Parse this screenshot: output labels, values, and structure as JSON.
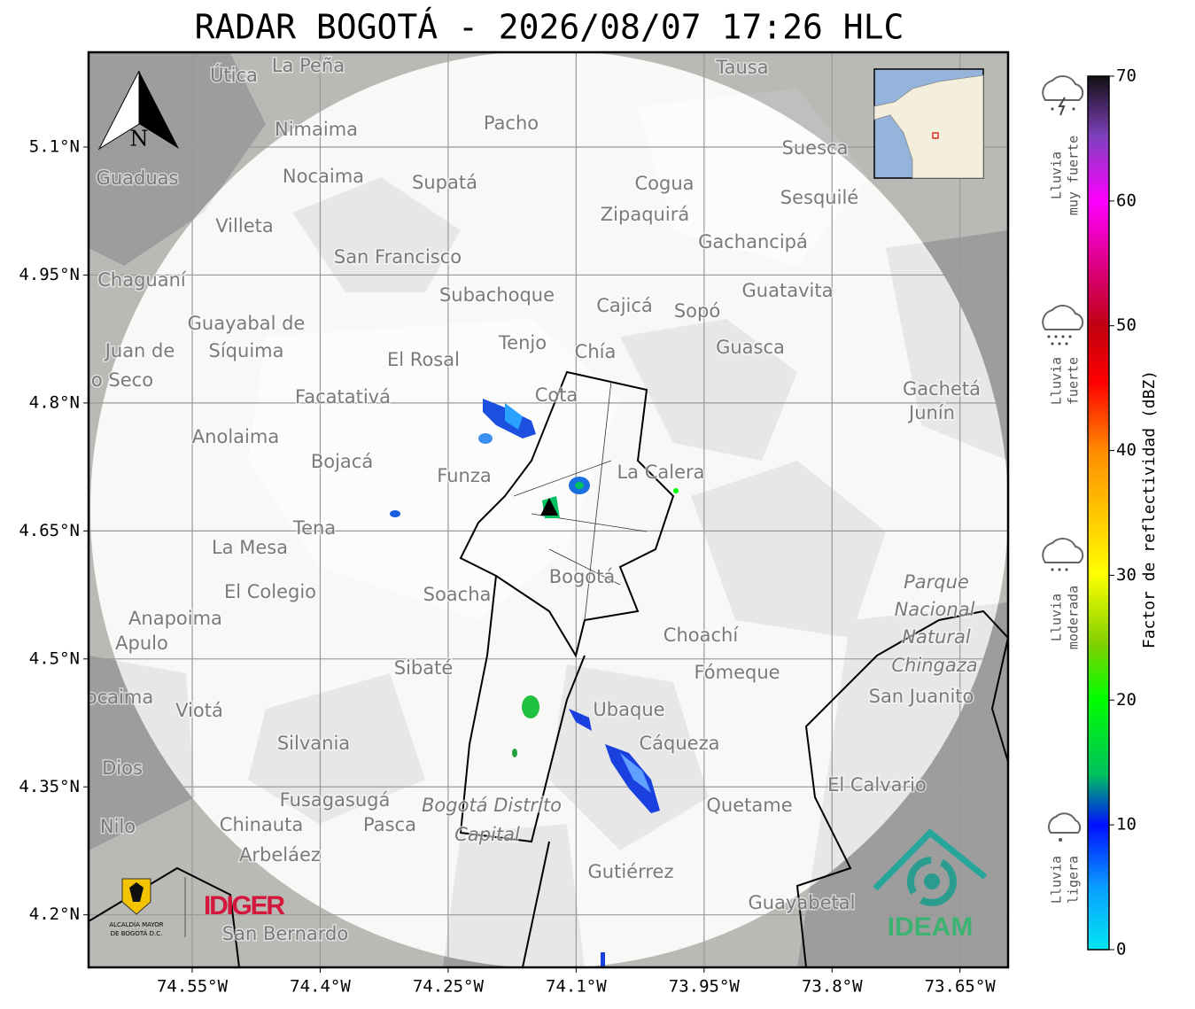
{
  "title": "RADAR BOGOTÁ - 2026/08/07 17:26 HLC",
  "map": {
    "compass": "N",
    "lat_ticks": [
      {
        "value": 5.1,
        "label": "5.1°N"
      },
      {
        "value": 4.95,
        "label": "4.95°N"
      },
      {
        "value": 4.8,
        "label": "4.8°N"
      },
      {
        "value": 4.65,
        "label": "4.65°N"
      },
      {
        "value": 4.5,
        "label": "4.5°N"
      },
      {
        "value": 4.35,
        "label": "4.35°N"
      },
      {
        "value": 4.2,
        "label": "4.2°N"
      }
    ],
    "lon_ticks": [
      {
        "value": -74.55,
        "label": "74.55°W"
      },
      {
        "value": -74.4,
        "label": "74.4°W"
      },
      {
        "value": -74.25,
        "label": "74.25°W"
      },
      {
        "value": -74.1,
        "label": "74.1°W"
      },
      {
        "value": -73.95,
        "label": "73.95°W"
      },
      {
        "value": -73.8,
        "label": "73.8°W"
      },
      {
        "value": -73.65,
        "label": "73.65°W"
      }
    ],
    "places": [
      "La Peña",
      "Útica",
      "Tausa",
      "Pacho",
      "Nimaima",
      "Suesca",
      "Guaduas",
      "Nocaima",
      "Supatá",
      "Cogua",
      "Sesquilé",
      "Zipaquirá",
      "Villeta",
      "Gachancipá",
      "San Francisco",
      "Chaguaní",
      "Guatavita",
      "Subachoque",
      "Cajicá",
      "Sopó",
      "Guayabal de",
      "Síquima",
      "Juan de",
      "o Seco",
      "Tenjo",
      "Chía",
      "Guasca",
      "El Rosal",
      "Facatativá",
      "Cota",
      "Gachetá",
      "Junín",
      "Anolaima",
      "Bojacá",
      "Funza",
      "La Calera",
      "Tena",
      "La Mesa",
      "El Colegio",
      "Soacha",
      "Bogotá",
      "Parque",
      "Nacional",
      "Natural",
      "Chingaza",
      "Anapoima",
      "Apulo",
      "Choachí",
      "Sibaté",
      "Fómeque",
      "San Juanito",
      "ocaima",
      "Viotá",
      "Ubaque",
      "Silvania",
      "Cáqueza",
      "Dios",
      "El Calvario",
      "Fusagasugá",
      "Bogotá Distrito",
      "Capital",
      "Quetame",
      "Nilo",
      "Chinauta",
      "Pasca",
      "Arbeláez",
      "Gutiérrez",
      "Guayabetal",
      "San Bernardo"
    ]
  },
  "colorbar": {
    "label": "Factor de reflectividad (dBZ)",
    "range": [
      0,
      70
    ],
    "ticks": [
      0,
      10,
      20,
      30,
      40,
      50,
      60,
      70
    ]
  },
  "legend": [
    [
      "Lluvia",
      "muy fuerte"
    ],
    [
      "Lluvia",
      "fuerte"
    ],
    [
      "Lluvia",
      "moderada"
    ],
    [
      "Lluvia",
      "ligera"
    ]
  ],
  "logos": {
    "alcaldia": [
      "ALCALDÍA MAYOR",
      "DE BOGOTÁ D.C."
    ],
    "idiger": "IDIGER",
    "ideam": "IDEAM"
  }
}
